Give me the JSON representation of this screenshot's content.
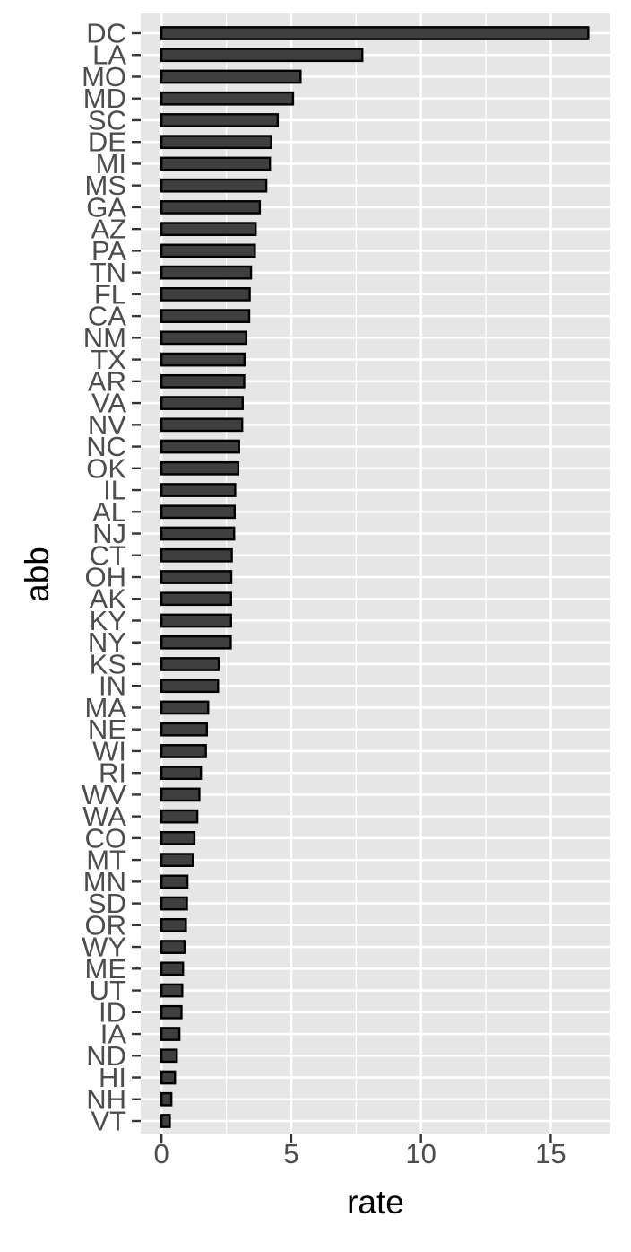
{
  "chart_data": {
    "type": "bar",
    "orientation": "horizontal",
    "xlabel": "rate",
    "ylabel": "abb",
    "xlim": [
      -0.8,
      17.3
    ],
    "xticks": [
      0,
      5,
      10,
      15
    ],
    "grid": true,
    "legend": "none",
    "colors": {
      "panel_background": "#e6e6e6",
      "grid_line": "#ffffff",
      "bar_fill": "#3f3f3f",
      "bar_border": "#000000",
      "tick_label": "#4d4d4d",
      "axis_title": "#000000"
    },
    "categories": [
      "DC",
      "LA",
      "MO",
      "MD",
      "SC",
      "DE",
      "MI",
      "MS",
      "GA",
      "AZ",
      "PA",
      "TN",
      "FL",
      "CA",
      "NM",
      "TX",
      "AR",
      "VA",
      "NV",
      "NC",
      "OK",
      "IL",
      "AL",
      "NJ",
      "CT",
      "OH",
      "AK",
      "KY",
      "NY",
      "KS",
      "IN",
      "MA",
      "NE",
      "WI",
      "RI",
      "WV",
      "WA",
      "CO",
      "MT",
      "MN",
      "SD",
      "OR",
      "WY",
      "ME",
      "UT",
      "ID",
      "IA",
      "ND",
      "HI",
      "NH",
      "VT"
    ],
    "values": [
      16.45,
      7.74,
      5.36,
      5.07,
      4.48,
      4.23,
      4.18,
      4.04,
      3.79,
      3.63,
      3.6,
      3.45,
      3.4,
      3.38,
      3.27,
      3.2,
      3.19,
      3.13,
      3.11,
      2.99,
      2.96,
      2.84,
      2.82,
      2.8,
      2.71,
      2.69,
      2.68,
      2.68,
      2.67,
      2.21,
      2.18,
      1.8,
      1.75,
      1.71,
      1.52,
      1.46,
      1.38,
      1.27,
      1.21,
      1.0,
      0.98,
      0.94,
      0.89,
      0.83,
      0.8,
      0.77,
      0.69,
      0.59,
      0.52,
      0.38,
      0.32
    ]
  }
}
